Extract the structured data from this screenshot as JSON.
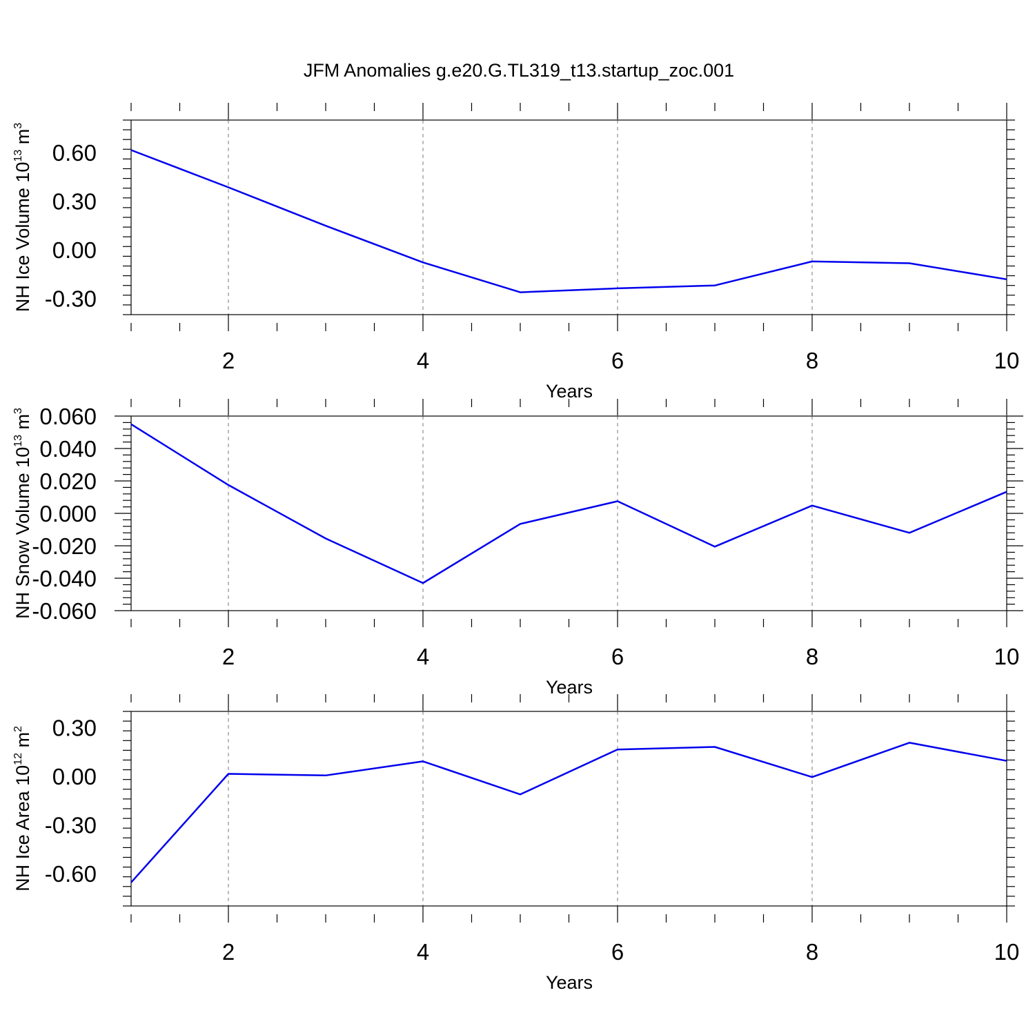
{
  "title": "JFM Anomalies g.e20.G.TL319_t13.startup_zoc.001",
  "chart_data": [
    {
      "type": "line",
      "xlabel": "Years",
      "ylabel": {
        "text": "NH Ice Volume 10",
        "exponent": "13",
        "unit": "m",
        "unit_exponent": "3"
      },
      "xlim": [
        1,
        10
      ],
      "ylim": [
        -0.4,
        0.8
      ],
      "x_ticks": [
        2,
        4,
        6,
        8,
        10
      ],
      "x_tick_labels": [
        "2",
        "4",
        "6",
        "8",
        "10"
      ],
      "y_ticks": [
        -0.3,
        0.0,
        0.3,
        0.6
      ],
      "y_tick_labels": [
        "-0.30",
        "0.00",
        "0.30",
        "0.60"
      ],
      "series": [
        {
          "name": "NH Ice Volume",
          "color": "#0000ee",
          "x": [
            1,
            2,
            3,
            4,
            5,
            6,
            7,
            8,
            9,
            10
          ],
          "values": [
            0.615,
            0.385,
            0.148,
            -0.078,
            -0.262,
            -0.238,
            -0.22,
            -0.072,
            -0.083,
            -0.182
          ]
        }
      ]
    },
    {
      "type": "line",
      "xlabel": "Years",
      "ylabel": {
        "text": "NH Snow Volume 10",
        "exponent": "13",
        "unit": "m",
        "unit_exponent": "3"
      },
      "xlim": [
        1,
        10
      ],
      "ylim": [
        -0.06,
        0.06
      ],
      "x_ticks": [
        2,
        4,
        6,
        8,
        10
      ],
      "x_tick_labels": [
        "2",
        "4",
        "6",
        "8",
        "10"
      ],
      "y_ticks": [
        -0.06,
        -0.04,
        -0.02,
        0.0,
        0.02,
        0.04,
        0.06
      ],
      "y_tick_labels": [
        "-0.060",
        "-0.040",
        "-0.020",
        "0.000",
        "0.020",
        "0.040",
        "0.060"
      ],
      "series": [
        {
          "name": "NH Snow Volume",
          "color": "#0000ee",
          "x": [
            1,
            2,
            3,
            4,
            5,
            6,
            7,
            8,
            9,
            10
          ],
          "values": [
            0.055,
            0.0175,
            -0.0155,
            -0.043,
            -0.0065,
            0.0075,
            -0.0205,
            0.0048,
            -0.012,
            0.0133
          ]
        }
      ]
    },
    {
      "type": "line",
      "xlabel": "Years",
      "ylabel": {
        "text": "NH Ice Area 10",
        "exponent": "12",
        "unit": "m",
        "unit_exponent": "2"
      },
      "xlim": [
        1,
        10
      ],
      "ylim": [
        -0.8,
        0.4
      ],
      "x_ticks": [
        2,
        4,
        6,
        8,
        10
      ],
      "x_tick_labels": [
        "2",
        "4",
        "6",
        "8",
        "10"
      ],
      "y_ticks": [
        -0.6,
        -0.3,
        0.0,
        0.3
      ],
      "y_tick_labels": [
        "-0.60",
        "-0.30",
        "0.00",
        "0.30"
      ],
      "series": [
        {
          "name": "NH Ice Area",
          "color": "#0000ee",
          "x": [
            1,
            2,
            3,
            4,
            5,
            6,
            7,
            8,
            9,
            10
          ],
          "values": [
            -0.655,
            0.015,
            0.005,
            0.092,
            -0.112,
            0.165,
            0.181,
            -0.005,
            0.207,
            0.095
          ]
        }
      ]
    }
  ]
}
